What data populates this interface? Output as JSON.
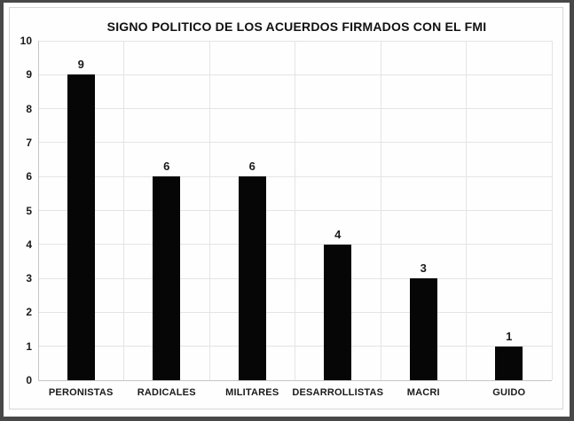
{
  "chart_data": {
    "type": "bar",
    "title": "SIGNO POLITICO DE LOS ACUERDOS FIRMADOS CON EL FMI",
    "categories": [
      "PERONISTAS",
      "RADICALES",
      "MILITARES",
      "DESARROLLISTAS",
      "MACRI",
      "GUIDO"
    ],
    "values": [
      9,
      6,
      6,
      4,
      3,
      1
    ],
    "data_labels": [
      "9",
      "6",
      "6",
      "4",
      "3",
      "1"
    ],
    "ytick_labels": [
      "0",
      "1",
      "2",
      "3",
      "4",
      "5",
      "6",
      "7",
      "8",
      "9",
      "10"
    ],
    "xlabel": "",
    "ylabel": "",
    "ylim": [
      0,
      10
    ],
    "ytick_step": 1,
    "grid": "both",
    "legend": "none",
    "bar_color": "#060606"
  },
  "style": {
    "text_color": "#1a1a1a",
    "title_color": "#111111",
    "gridline_color": "#e4e4e4",
    "axis_line_color": "#c6c6c6",
    "chart_border_color": "#d6d6d6",
    "chart_background": "#fefefe",
    "frame_color": "#484848"
  }
}
